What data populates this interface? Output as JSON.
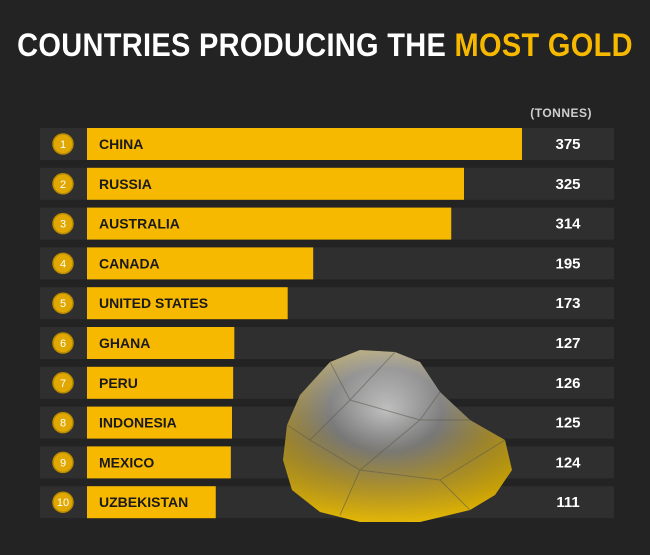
{
  "title": {
    "main": "COUNTRIES PRODUCING THE",
    "highlight": "MOST GOLD"
  },
  "unit_label": "(TONNES)",
  "colors": {
    "background": "#232323",
    "bar": "#f7b800",
    "row": "#2f2f2f",
    "title_highlight": "#f7b800"
  },
  "chart_data": {
    "type": "bar",
    "orientation": "horizontal",
    "categories": [
      "CHINA",
      "RUSSIA",
      "AUSTRALIA",
      "CANADA",
      "UNITED STATES",
      "GHANA",
      "PERU",
      "INDONESIA",
      "MEXICO",
      "UZBEKISTAN"
    ],
    "values": [
      375,
      325,
      314,
      195,
      173,
      127,
      126,
      125,
      124,
      111
    ],
    "ranks": [
      "1",
      "2",
      "3",
      "4",
      "5",
      "6",
      "7",
      "8",
      "9",
      "10"
    ],
    "unit": "(TONNES)",
    "legend": "none",
    "grid": false
  }
}
